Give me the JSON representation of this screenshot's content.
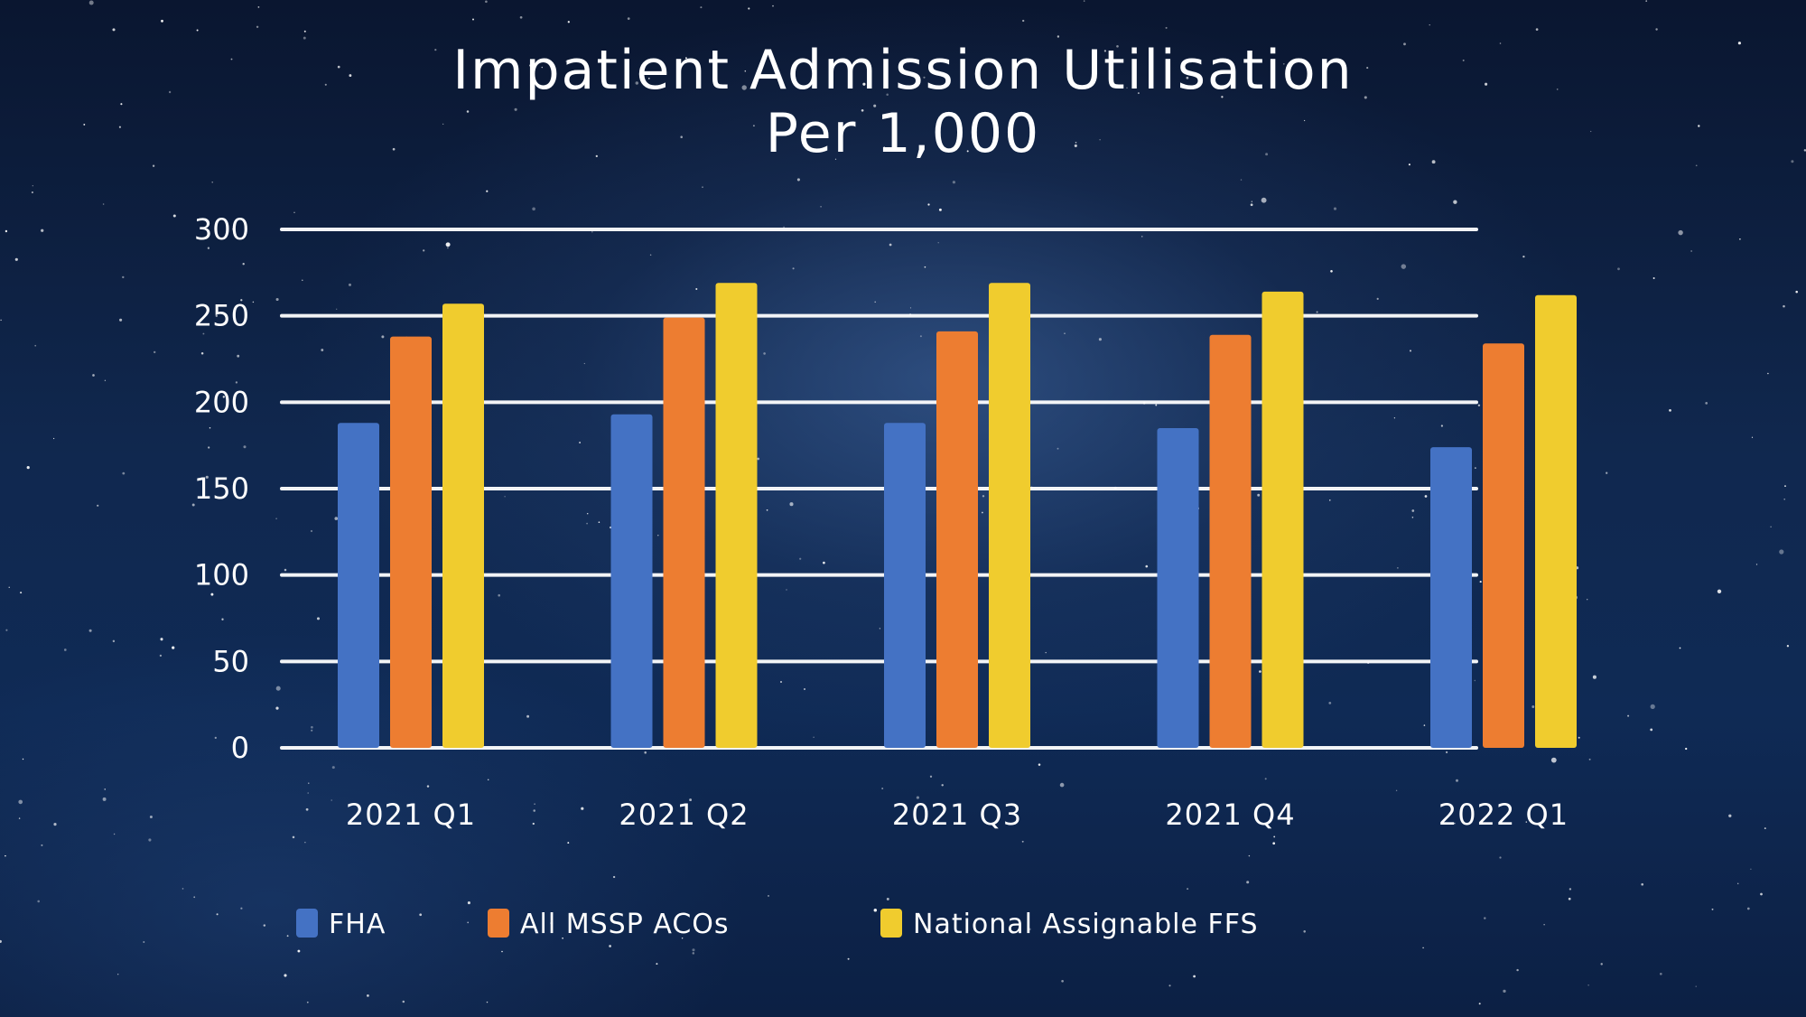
{
  "chart_data": {
    "type": "bar",
    "title_lines": [
      "Impatient Admission Utilisation",
      "Per 1,000"
    ],
    "xlabel": "",
    "ylabel": "",
    "categories": [
      "2021 Q1",
      "2021 Q2",
      "2021 Q3",
      "2021 Q4",
      "2022 Q1"
    ],
    "series": [
      {
        "name": "FHA",
        "color": "#4472c4",
        "values": [
          188,
          193,
          188,
          185,
          174
        ]
      },
      {
        "name": "All MSSP ACOs",
        "color": "#ed7d31",
        "values": [
          238,
          249,
          241,
          239,
          234
        ]
      },
      {
        "name": "National Assignable FFS",
        "color": "#f0cc2e",
        "values": [
          257,
          269,
          269,
          264,
          262
        ]
      }
    ],
    "yticks": [
      "0",
      "50",
      "100",
      "150",
      "200",
      "250",
      "300"
    ],
    "ylim": [
      0,
      300
    ],
    "grid": true,
    "legend_position": "bottom"
  }
}
